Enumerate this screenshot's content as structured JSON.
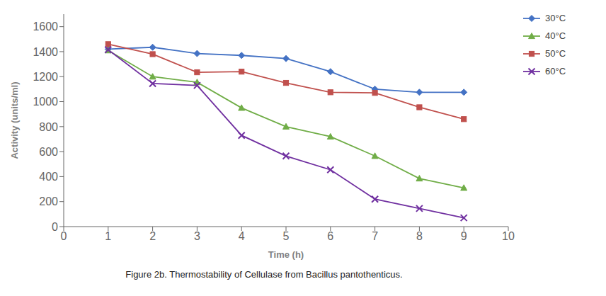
{
  "chart_data": {
    "type": "line",
    "caption": "Figure 2b. Thermostability of Cellulase from Bacillus pantothenticus.",
    "x_label": "Time (h)",
    "y_label": "Activity (units/ml)",
    "xlim": [
      0,
      10
    ],
    "ylim": [
      0,
      1700
    ],
    "xticks": [
      0,
      1,
      2,
      3,
      4,
      5,
      6,
      7,
      8,
      9,
      10
    ],
    "yticks": [
      0,
      200,
      400,
      600,
      800,
      1000,
      1200,
      1400,
      1600
    ],
    "grid": false,
    "legend": "right",
    "x": [
      1,
      2,
      3,
      4,
      5,
      6,
      7,
      8,
      9
    ],
    "series": [
      {
        "name": "30°C",
        "color": "#4472C4",
        "marker": "diamond",
        "values": [
          1420,
          1435,
          1385,
          1370,
          1345,
          1240,
          1100,
          1075,
          1075
        ]
      },
      {
        "name": "40°C",
        "color": "#70AD47",
        "marker": "triangle",
        "values": [
          1410,
          1200,
          1155,
          950,
          800,
          720,
          565,
          385,
          310
        ]
      },
      {
        "name": "50°C",
        "color": "#C0504D",
        "marker": "square",
        "values": [
          1460,
          1380,
          1235,
          1240,
          1150,
          1075,
          1070,
          955,
          860
        ]
      },
      {
        "name": "60°C",
        "color": "#7030A0",
        "marker": "x",
        "values": [
          1415,
          1145,
          1130,
          730,
          565,
          455,
          220,
          145,
          70
        ]
      }
    ]
  }
}
